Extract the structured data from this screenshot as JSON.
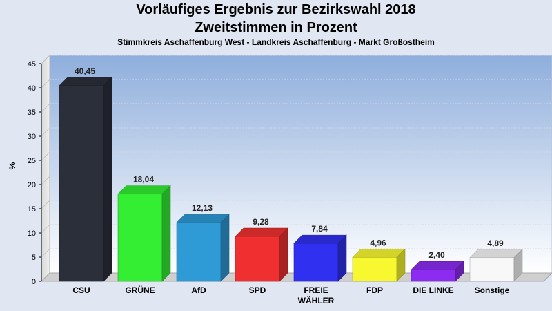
{
  "header": {
    "title_line1": "Vorläufiges Ergebnis zur Bezirkswahl 2018",
    "title_line2": "Zweitstimmen in Prozent",
    "subtitle": "Stimmkreis Aschaffenburg West - Landkreis Aschaffenburg - Markt Großostheim"
  },
  "chart_data": {
    "type": "bar",
    "title": "Vorläufiges Ergebnis zur Bezirkswahl 2018 Zweitstimmen in Prozent",
    "subtitle": "Stimmkreis Aschaffenburg West - Landkreis Aschaffenburg - Markt Großostheim",
    "xlabel": "",
    "ylabel": "%",
    "ylim": [
      0,
      45
    ],
    "yticks": [
      0,
      5,
      10,
      15,
      20,
      25,
      30,
      35,
      40,
      45
    ],
    "grid": true,
    "categories": [
      "CSU",
      "GRÜNE",
      "AfD",
      "SPD",
      "FREIE WÄHLER",
      "FDP",
      "DIE LINKE",
      "Sonstige"
    ],
    "category_lines": [
      [
        "CSU"
      ],
      [
        "GRÜNE"
      ],
      [
        "AfD"
      ],
      [
        "SPD"
      ],
      [
        "FREIE",
        "WÄHLER"
      ],
      [
        "FDP"
      ],
      [
        "DIE LINKE"
      ],
      [
        "Sonstige"
      ]
    ],
    "values": [
      40.45,
      18.04,
      12.13,
      9.28,
      7.84,
      4.96,
      2.4,
      4.89
    ],
    "value_labels": [
      "40,45",
      "18,04",
      "12,13",
      "9,28",
      "7,84",
      "4,96",
      "2,40",
      "4,89"
    ],
    "colors": [
      "#2b2f3a",
      "#33ee33",
      "#2e9ad6",
      "#f03030",
      "#3030f0",
      "#f8f830",
      "#8c2cf0",
      "#f8f8f8"
    ]
  }
}
